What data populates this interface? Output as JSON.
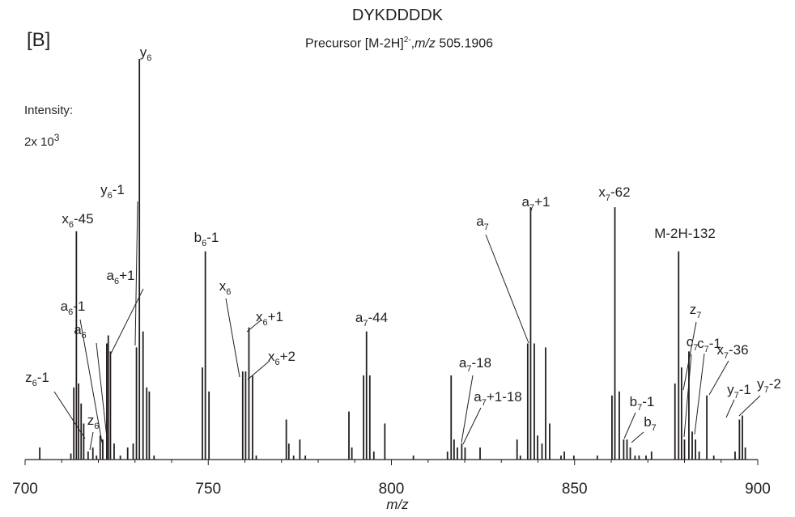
{
  "chart_data": {
    "type": "bar",
    "title": "DYKDDDDK",
    "subtitle": "Precursor [M-2H]²⁻, m/z 505.1906",
    "subtitle_parts": {
      "prefix": "Precursor [M-2H]",
      "charge": "2-",
      "sep": ",",
      "mz_label": "m/z",
      "mz_value": " 505.1906"
    },
    "panel_label": "[B]",
    "intensity_label": "Intensity:",
    "intensity_scale": {
      "text": "2x 10",
      "exponent": "3"
    },
    "xlabel": "m/z",
    "xlim": [
      700,
      900
    ],
    "ylim": [
      0,
      1.0
    ],
    "xticks": [
      700,
      750,
      800,
      850,
      900
    ],
    "grid": false,
    "peaks": [
      {
        "mz": 704.0,
        "rel": 0.03
      },
      {
        "mz": 712.5,
        "rel": 0.015
      },
      {
        "mz": 713.3,
        "rel": 0.18
      },
      {
        "mz": 714.0,
        "rel": 0.57
      },
      {
        "mz": 714.6,
        "rel": 0.19
      },
      {
        "mz": 715.3,
        "rel": 0.14
      },
      {
        "mz": 716.0,
        "rel": 0.09
      },
      {
        "mz": 717.2,
        "rel": 0.02
      },
      {
        "mz": 718.5,
        "rel": 0.03
      },
      {
        "mz": 719.5,
        "rel": 0.01
      },
      {
        "mz": 720.5,
        "rel": 0.06
      },
      {
        "mz": 721.2,
        "rel": 0.05
      },
      {
        "mz": 722.3,
        "rel": 0.29
      },
      {
        "mz": 722.7,
        "rel": 0.31
      },
      {
        "mz": 723.3,
        "rel": 0.27
      },
      {
        "mz": 724.3,
        "rel": 0.04
      },
      {
        "mz": 726.0,
        "rel": 0.01
      },
      {
        "mz": 728.0,
        "rel": 0.03
      },
      {
        "mz": 729.5,
        "rel": 0.04
      },
      {
        "mz": 730.4,
        "rel": 0.28
      },
      {
        "mz": 731.2,
        "rel": 1.0
      },
      {
        "mz": 732.2,
        "rel": 0.32
      },
      {
        "mz": 733.2,
        "rel": 0.18
      },
      {
        "mz": 733.9,
        "rel": 0.17
      },
      {
        "mz": 735.2,
        "rel": 0.01
      },
      {
        "mz": 748.4,
        "rel": 0.23
      },
      {
        "mz": 749.2,
        "rel": 0.52
      },
      {
        "mz": 750.2,
        "rel": 0.17
      },
      {
        "mz": 759.4,
        "rel": 0.22
      },
      {
        "mz": 760.2,
        "rel": 0.22
      },
      {
        "mz": 761.1,
        "rel": 0.33
      },
      {
        "mz": 762.1,
        "rel": 0.21
      },
      {
        "mz": 763.1,
        "rel": 0.01
      },
      {
        "mz": 771.3,
        "rel": 0.1
      },
      {
        "mz": 772.0,
        "rel": 0.04
      },
      {
        "mz": 773.3,
        "rel": 0.01
      },
      {
        "mz": 775.0,
        "rel": 0.05
      },
      {
        "mz": 776.5,
        "rel": 0.01
      },
      {
        "mz": 788.4,
        "rel": 0.12
      },
      {
        "mz": 789.2,
        "rel": 0.03
      },
      {
        "mz": 792.4,
        "rel": 0.21
      },
      {
        "mz": 793.2,
        "rel": 0.32
      },
      {
        "mz": 794.1,
        "rel": 0.21
      },
      {
        "mz": 795.2,
        "rel": 0.02
      },
      {
        "mz": 798.2,
        "rel": 0.09
      },
      {
        "mz": 806.0,
        "rel": 0.01
      },
      {
        "mz": 815.3,
        "rel": 0.02
      },
      {
        "mz": 816.3,
        "rel": 0.21
      },
      {
        "mz": 817.1,
        "rel": 0.05
      },
      {
        "mz": 818.0,
        "rel": 0.03
      },
      {
        "mz": 819.2,
        "rel": 0.04
      },
      {
        "mz": 820.1,
        "rel": 0.03
      },
      {
        "mz": 824.2,
        "rel": 0.03
      },
      {
        "mz": 834.3,
        "rel": 0.05
      },
      {
        "mz": 835.2,
        "rel": 0.01
      },
      {
        "mz": 837.2,
        "rel": 0.29
      },
      {
        "mz": 838.0,
        "rel": 0.63
      },
      {
        "mz": 839.0,
        "rel": 0.29
      },
      {
        "mz": 839.9,
        "rel": 0.06
      },
      {
        "mz": 841.1,
        "rel": 0.04
      },
      {
        "mz": 842.1,
        "rel": 0.28
      },
      {
        "mz": 843.2,
        "rel": 0.09
      },
      {
        "mz": 846.3,
        "rel": 0.01
      },
      {
        "mz": 847.2,
        "rel": 0.02
      },
      {
        "mz": 849.8,
        "rel": 0.01
      },
      {
        "mz": 856.2,
        "rel": 0.01
      },
      {
        "mz": 860.2,
        "rel": 0.16
      },
      {
        "mz": 861.0,
        "rel": 0.63
      },
      {
        "mz": 862.2,
        "rel": 0.17
      },
      {
        "mz": 863.4,
        "rel": 0.05
      },
      {
        "mz": 864.3,
        "rel": 0.05
      },
      {
        "mz": 865.2,
        "rel": 0.03
      },
      {
        "mz": 866.5,
        "rel": 0.01
      },
      {
        "mz": 867.6,
        "rel": 0.01
      },
      {
        "mz": 869.5,
        "rel": 0.01
      },
      {
        "mz": 871.0,
        "rel": 0.02
      },
      {
        "mz": 877.4,
        "rel": 0.19
      },
      {
        "mz": 878.4,
        "rel": 0.52
      },
      {
        "mz": 879.2,
        "rel": 0.23
      },
      {
        "mz": 880.0,
        "rel": 0.05
      },
      {
        "mz": 881.2,
        "rel": 0.27
      },
      {
        "mz": 882.1,
        "rel": 0.07
      },
      {
        "mz": 883.0,
        "rel": 0.05
      },
      {
        "mz": 884.0,
        "rel": 0.02
      },
      {
        "mz": 886.1,
        "rel": 0.16
      },
      {
        "mz": 888.0,
        "rel": 0.01
      },
      {
        "mz": 893.8,
        "rel": 0.02
      },
      {
        "mz": 895.0,
        "rel": 0.1
      },
      {
        "mz": 895.8,
        "rel": 0.11
      },
      {
        "mz": 896.6,
        "rel": 0.03
      }
    ],
    "annotations": [
      {
        "base": "y",
        "sub": "6",
        "suffix": "",
        "mz": 731.2
      },
      {
        "base": "y",
        "sub": "6",
        "suffix": "-1",
        "mz": 730.4
      },
      {
        "base": "x",
        "sub": "6",
        "suffix": "-45",
        "mz": 714.0
      },
      {
        "base": "a",
        "sub": "6",
        "suffix": "+1",
        "mz": 723.3
      },
      {
        "base": "a",
        "sub": "6",
        "suffix": "-1",
        "mz": 721.2
      },
      {
        "base": "a",
        "sub": "6",
        "suffix": "",
        "mz": 722.3
      },
      {
        "base": "z",
        "sub": "6",
        "suffix": "-1",
        "mz": 716.0
      },
      {
        "base": "z",
        "sub": "6",
        "suffix": "",
        "mz": 717.2
      },
      {
        "base": "b",
        "sub": "6",
        "suffix": "-1",
        "mz": 749.2
      },
      {
        "base": "x",
        "sub": "6",
        "suffix": "",
        "mz": 759.4
      },
      {
        "base": "x",
        "sub": "6",
        "suffix": "+1",
        "mz": 761.1
      },
      {
        "base": "x",
        "sub": "6",
        "suffix": "+2",
        "mz": 762.1
      },
      {
        "base": "a",
        "sub": "7",
        "suffix": "-44",
        "mz": 793.2
      },
      {
        "base": "a",
        "sub": "7",
        "suffix": "-18",
        "mz": 819.2
      },
      {
        "base": "a",
        "sub": "7",
        "suffix": "+1-18",
        "mz": 820.1
      },
      {
        "base": "a",
        "sub": "7",
        "suffix": "",
        "mz": 837.2
      },
      {
        "base": "a",
        "sub": "7",
        "suffix": "+1",
        "mz": 838.0
      },
      {
        "base": "x",
        "sub": "7",
        "suffix": "-62",
        "mz": 861.0
      },
      {
        "base": "b",
        "sub": "7",
        "suffix": "-1",
        "mz": 863.4
      },
      {
        "base": "b",
        "sub": "7",
        "suffix": "",
        "mz": 865.2
      },
      {
        "base": "M-2H-132",
        "sub": "",
        "suffix": "",
        "mz": 878.4
      },
      {
        "base": "z",
        "sub": "7",
        "suffix": "",
        "mz": 879.2
      },
      {
        "base": "c",
        "sub": "7",
        "suffix": "",
        "mz": 881.2
      },
      {
        "base": "c",
        "sub": "7",
        "suffix": "-1",
        "mz": 882.1
      },
      {
        "base": "x",
        "sub": "7",
        "suffix": "-36",
        "mz": 886.1
      },
      {
        "base": "y",
        "sub": "7",
        "suffix": "-1",
        "mz": 895.0
      },
      {
        "base": "y",
        "sub": "7",
        "suffix": "-2",
        "mz": 895.8
      }
    ],
    "colors": {
      "ink": "#231f20"
    }
  }
}
